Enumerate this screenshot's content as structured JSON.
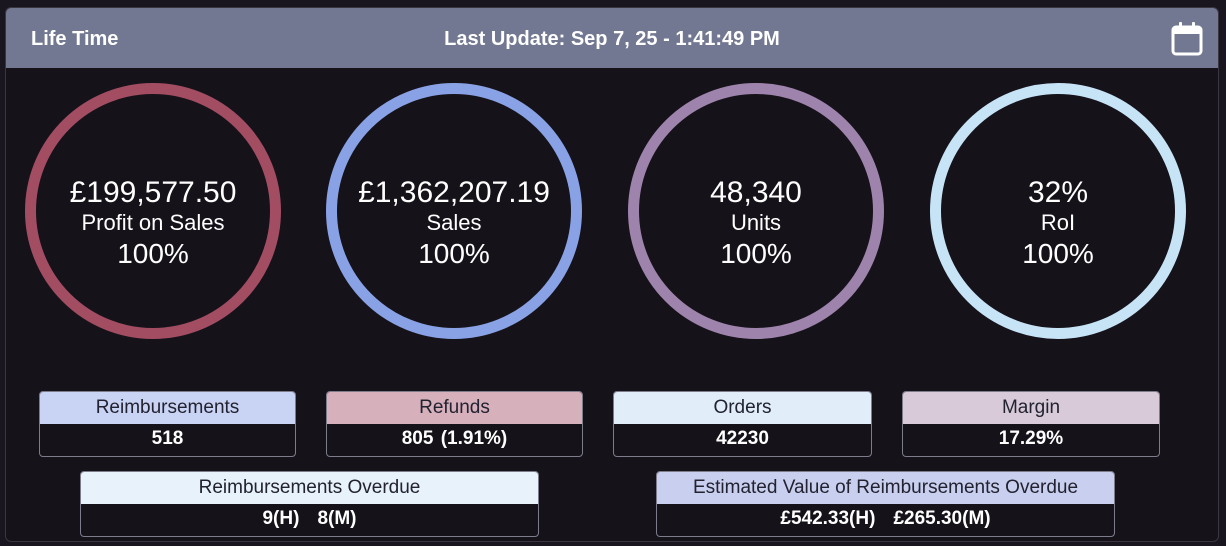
{
  "header": {
    "title": "Life Time",
    "last_update": "Last Update: Sep 7, 25 - 1:41:49 PM",
    "calendar_icon": "calendar-icon"
  },
  "rings": [
    {
      "value": "£199,577.50",
      "label": "Profit on Sales",
      "percent": "100%",
      "color": "#a34d62"
    },
    {
      "value": "£1,362,207.19",
      "label": "Sales",
      "percent": "100%",
      "color": "#89a2e6"
    },
    {
      "value": "48,340",
      "label": "Units",
      "percent": "100%",
      "color": "#9e84ac"
    },
    {
      "value": "32%",
      "label": "RoI",
      "percent": "100%",
      "color": "#c7e4f7"
    }
  ],
  "stats": {
    "reimbursements": {
      "label": "Reimbursements",
      "value": "518",
      "color": "#c9d3f4"
    },
    "refunds": {
      "label": "Refunds",
      "value": "805 (1.91%)",
      "color": "#d6b0bb"
    },
    "orders": {
      "label": "Orders",
      "value": "42230",
      "color": "#e1eefa"
    },
    "margin": {
      "label": "Margin",
      "value": "17.29%",
      "color": "#d8cad8"
    },
    "reimbursements_overdue": {
      "label": "Reimbursements Overdue",
      "value_h": "9(H)",
      "value_m": "8(M)",
      "color": "#e8f2fb"
    },
    "estimated_value_overdue": {
      "label": "Estimated Value of Reimbursements Overdue",
      "value_h": "£542.33(H)",
      "value_m": "£265.30(M)",
      "color": "#c9cfee"
    }
  }
}
